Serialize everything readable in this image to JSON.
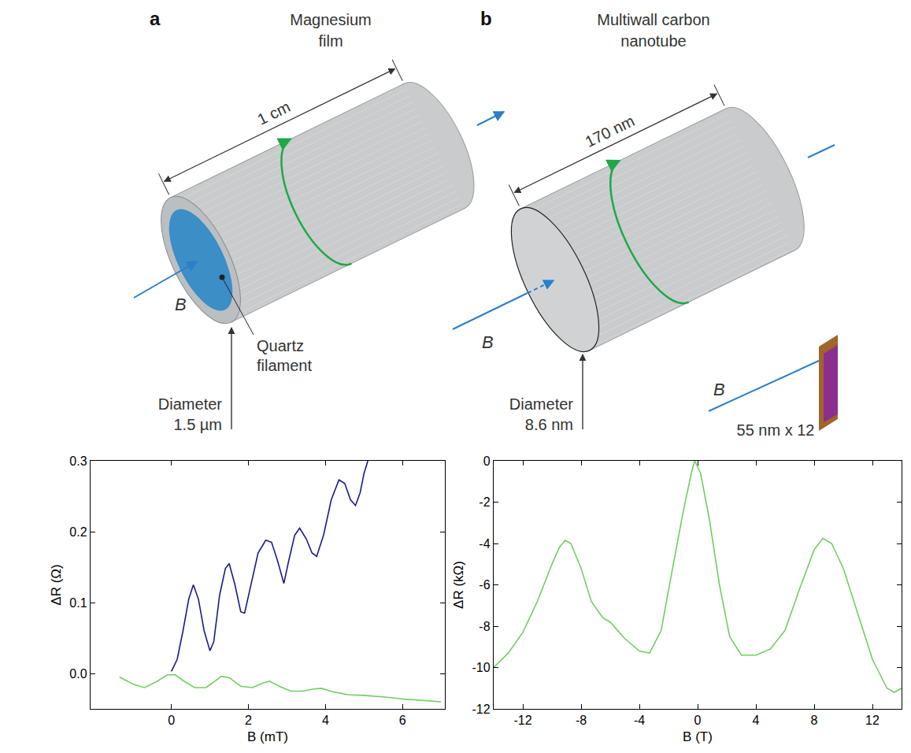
{
  "diagram": {
    "panels": [
      {
        "letter": "a",
        "title": "Magnesium film",
        "length": "1 cm",
        "field": "B",
        "core": "Quartz filament",
        "diameter": "Diameter 1.5 µm"
      },
      {
        "letter": "b",
        "title": "Multiwall carbon nanotube",
        "length": "170 nm",
        "field": "B",
        "diameter": "Diameter 8.6 nm"
      },
      {
        "field": "B",
        "size": "55 nm x 12"
      }
    ]
  },
  "chart_data": [
    {
      "type": "line",
      "x_label": "B (mT)",
      "y_label": "ΔR (Ω)",
      "grid": false,
      "xlim": [
        -2.1,
        7.1
      ],
      "xticks": [
        0,
        2,
        4,
        6
      ],
      "ylim": [
        -0.05,
        0.3
      ],
      "yticks": [
        {
          "value": 0,
          "label": "0.0"
        },
        0.1,
        0.2,
        0.3
      ],
      "series": [
        {
          "color": "#1a1a8c",
          "x": [
            0,
            0.15,
            0.3,
            0.45,
            0.57,
            0.7,
            0.85,
            1.0,
            1.1,
            1.25,
            1.4,
            1.5,
            1.65,
            1.8,
            1.9,
            2.05,
            2.25,
            2.45,
            2.6,
            2.75,
            2.92,
            3.05,
            3.2,
            3.33,
            3.5,
            3.65,
            3.77,
            3.95,
            4.15,
            4.35,
            4.5,
            4.65,
            4.78,
            4.9,
            5.0,
            5.1
          ],
          "values": [
            0.003,
            0.02,
            0.06,
            0.105,
            0.125,
            0.105,
            0.06,
            0.032,
            0.045,
            0.11,
            0.148,
            0.155,
            0.125,
            0.087,
            0.085,
            0.12,
            0.17,
            0.188,
            0.185,
            0.16,
            0.127,
            0.16,
            0.195,
            0.205,
            0.19,
            0.17,
            0.165,
            0.195,
            0.245,
            0.273,
            0.268,
            0.245,
            0.237,
            0.255,
            0.282,
            0.3
          ]
        },
        {
          "color": "#6fcf5f",
          "x": [
            -1.35,
            -1.0,
            -0.7,
            -0.4,
            -0.1,
            0.1,
            0.3,
            0.6,
            0.9,
            1.1,
            1.3,
            1.5,
            1.8,
            2.1,
            2.4,
            2.55,
            2.8,
            3.1,
            3.4,
            3.7,
            3.9,
            4.2,
            4.6,
            5.0,
            5.5,
            6.0,
            6.5,
            7.0
          ],
          "values": [
            -0.005,
            -0.015,
            -0.02,
            -0.012,
            -0.002,
            -0.002,
            -0.01,
            -0.02,
            -0.02,
            -0.012,
            -0.004,
            -0.006,
            -0.018,
            -0.02,
            -0.013,
            -0.011,
            -0.018,
            -0.025,
            -0.025,
            -0.022,
            -0.021,
            -0.026,
            -0.03,
            -0.031,
            -0.033,
            -0.036,
            -0.038,
            -0.04
          ]
        }
      ]
    },
    {
      "type": "line",
      "x_label": "B (T)",
      "y_label": "ΔR (kΩ)",
      "grid": false,
      "xlim": [
        -14,
        14
      ],
      "xticks": [
        -12,
        -8,
        -4,
        0,
        4,
        8,
        12
      ],
      "ylim": [
        -12,
        0
      ],
      "yticks": [
        -12,
        -10,
        -8,
        -6,
        -4,
        -2,
        0
      ],
      "series": [
        {
          "color": "#6fcf5f",
          "x": [
            -14,
            -13,
            -12,
            -11,
            -10,
            -9.5,
            -9.1,
            -8.7,
            -8,
            -7.3,
            -6.5,
            -6,
            -5,
            -4,
            -3.3,
            -2.5,
            -1.8,
            -1.0,
            -0.4,
            -0.2,
            0.2,
            0.8,
            1.5,
            2.2,
            3,
            4,
            5,
            6,
            7,
            8,
            8.6,
            9.2,
            10,
            11,
            12,
            13,
            13.5,
            14
          ],
          "values": [
            -10,
            -9.3,
            -8.3,
            -6.8,
            -5,
            -4.2,
            -3.85,
            -4.0,
            -5.2,
            -6.8,
            -7.6,
            -7.8,
            -8.6,
            -9.2,
            -9.3,
            -8.2,
            -5.5,
            -2.5,
            -0.5,
            0,
            -0.6,
            -2.8,
            -6,
            -8.5,
            -9.4,
            -9.4,
            -9.1,
            -8.2,
            -6.2,
            -4.3,
            -3.75,
            -4.0,
            -5.2,
            -7.4,
            -9.6,
            -11,
            -11.2,
            -11
          ]
        }
      ]
    }
  ]
}
